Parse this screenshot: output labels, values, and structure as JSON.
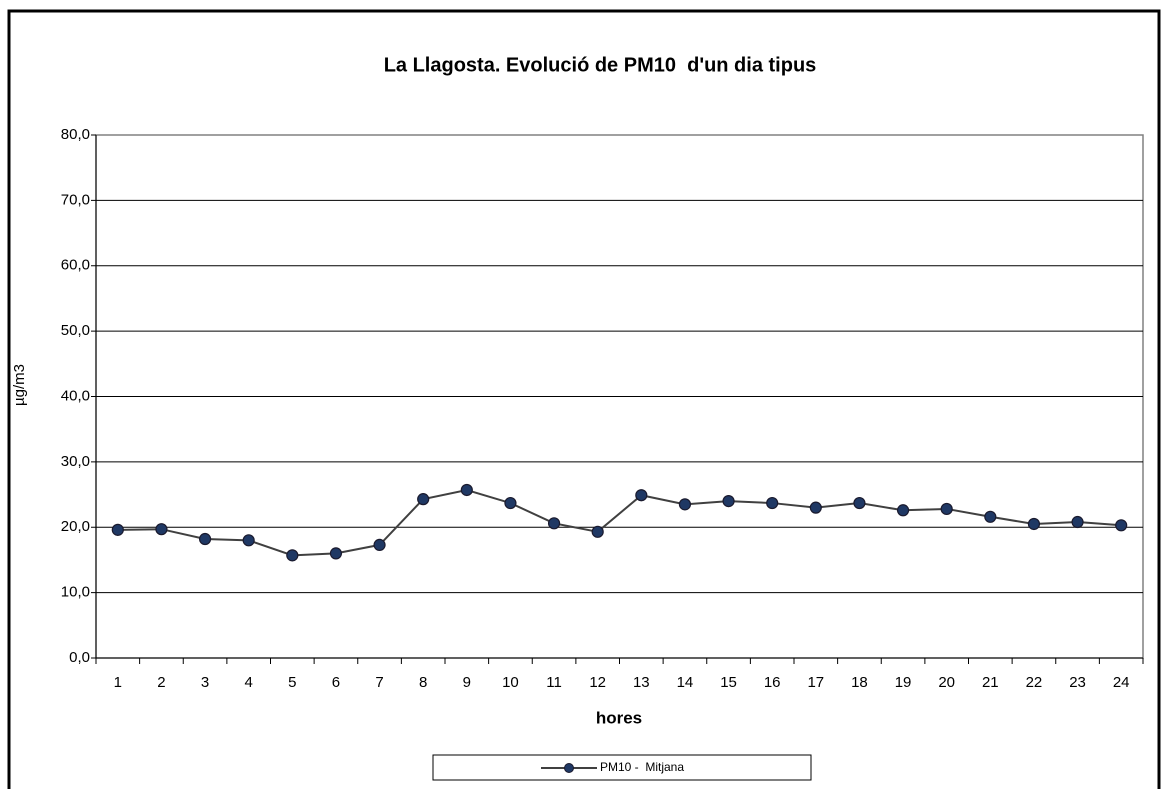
{
  "chart_data": {
    "type": "line",
    "title": "La Llagosta. Evolució de PM10  d'un dia tipus",
    "x_label": "hores",
    "y_label": "µg/m3",
    "categories": [
      "1",
      "2",
      "3",
      "4",
      "5",
      "6",
      "7",
      "8",
      "9",
      "10",
      "11",
      "12",
      "13",
      "14",
      "15",
      "16",
      "17",
      "18",
      "19",
      "20",
      "21",
      "22",
      "23",
      "24"
    ],
    "series": [
      {
        "name": "PM10 -  Mitjana",
        "color": "#1f3864",
        "values": [
          19.6,
          19.7,
          18.2,
          18.0,
          15.7,
          16.0,
          17.3,
          24.3,
          25.7,
          23.7,
          20.6,
          19.3,
          24.9,
          23.5,
          24.0,
          23.7,
          23.0,
          23.7,
          22.6,
          22.8,
          21.6,
          20.5,
          20.8,
          20.3
        ]
      }
    ],
    "ylim": [
      0,
      80
    ],
    "yticks": [
      {
        "value": 0,
        "label": "0,0"
      },
      {
        "value": 10,
        "label": "10,0"
      },
      {
        "value": 20,
        "label": "20,0"
      },
      {
        "value": 30,
        "label": "30,0"
      },
      {
        "value": 40,
        "label": "40,0"
      },
      {
        "value": 50,
        "label": "50,0"
      },
      {
        "value": 60,
        "label": "60,0"
      },
      {
        "value": 70,
        "label": "70,0"
      },
      {
        "value": 80,
        "label": "80,0"
      }
    ],
    "grid": true,
    "legend": "bottom"
  }
}
